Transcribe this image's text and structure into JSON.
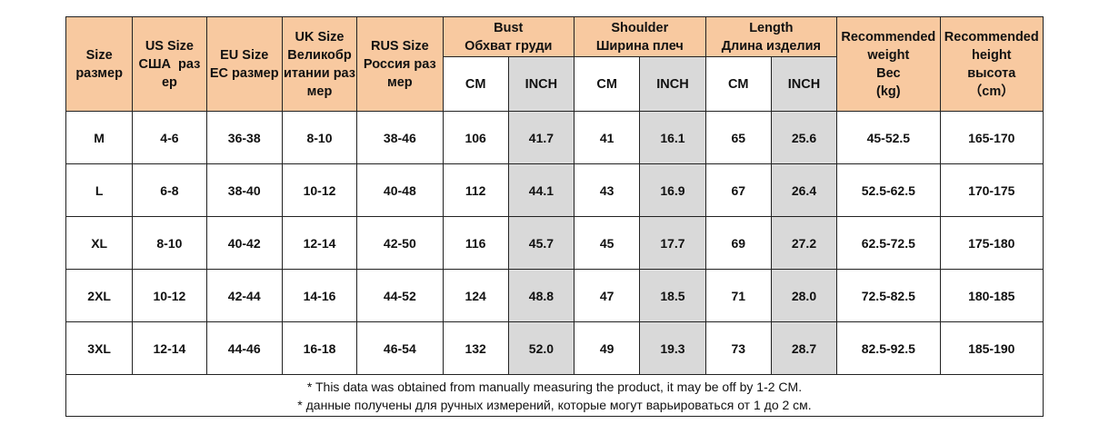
{
  "table": {
    "headers": {
      "size": [
        "Size",
        "размер"
      ],
      "us": [
        "US Size",
        "США  раз",
        "ер"
      ],
      "eu": [
        "EU Size",
        "ЕС размер"
      ],
      "uk": [
        "UK Size",
        "Великобр",
        "итании раз",
        "мер"
      ],
      "rus": [
        "RUS Size",
        "Россия раз",
        "мер"
      ],
      "bust": [
        "Bust",
        "Обхват груди"
      ],
      "shoulder": [
        "Shoulder",
        "Ширина плеч"
      ],
      "length": [
        "Length",
        "Длина изделия"
      ],
      "weight": [
        "Recommended",
        "weight",
        "Вес",
        "(kg)"
      ],
      "height": [
        "Recommended",
        "height",
        "высота",
        "（cm）"
      ]
    },
    "unit_cm": "CM",
    "unit_inch": "INCH",
    "rows": [
      {
        "size": "M",
        "us": "4-6",
        "eu": "36-38",
        "uk": "8-10",
        "rus": "38-46",
        "bust_cm": "106",
        "bust_in": "41.7",
        "shoulder_cm": "41",
        "shoulder_in": "16.1",
        "length_cm": "65",
        "length_in": "25.6",
        "weight": "45-52.5",
        "height": "165-170"
      },
      {
        "size": "L",
        "us": "6-8",
        "eu": "38-40",
        "uk": "10-12",
        "rus": "40-48",
        "bust_cm": "112",
        "bust_in": "44.1",
        "shoulder_cm": "43",
        "shoulder_in": "16.9",
        "length_cm": "67",
        "length_in": "26.4",
        "weight": "52.5-62.5",
        "height": "170-175"
      },
      {
        "size": "XL",
        "us": "8-10",
        "eu": "40-42",
        "uk": "12-14",
        "rus": "42-50",
        "bust_cm": "116",
        "bust_in": "45.7",
        "shoulder_cm": "45",
        "shoulder_in": "17.7",
        "length_cm": "69",
        "length_in": "27.2",
        "weight": "62.5-72.5",
        "height": "175-180"
      },
      {
        "size": "2XL",
        "us": "10-12",
        "eu": "42-44",
        "uk": "14-16",
        "rus": "44-52",
        "bust_cm": "124",
        "bust_in": "48.8",
        "shoulder_cm": "47",
        "shoulder_in": "18.5",
        "length_cm": "71",
        "length_in": "28.0",
        "weight": "72.5-82.5",
        "height": "180-185"
      },
      {
        "size": "3XL",
        "us": "12-14",
        "eu": "44-46",
        "uk": "16-18",
        "rus": "46-54",
        "bust_cm": "132",
        "bust_in": "52.0",
        "shoulder_cm": "49",
        "shoulder_in": "19.3",
        "length_cm": "73",
        "length_in": "28.7",
        "weight": "82.5-92.5",
        "height": "185-190"
      }
    ],
    "note_en": "* This data was obtained from manually measuring the product, it may be off by 1-2 CM.",
    "note_ru": "* данные получены для ручных измерений, которые могут варьироваться от 1 до 2 см."
  }
}
